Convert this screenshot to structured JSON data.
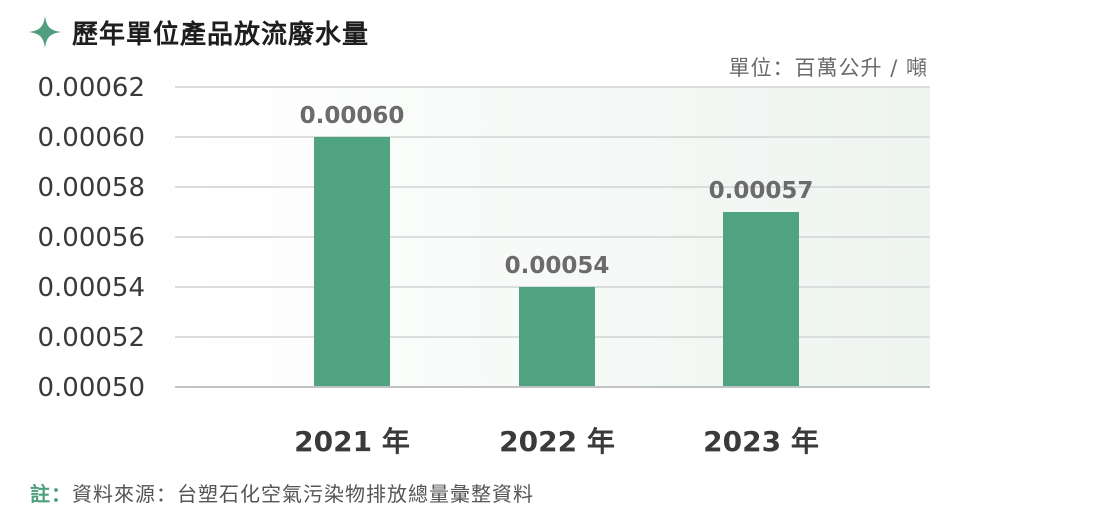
{
  "header": {
    "title": "歷年單位產品放流廢水量",
    "unit": "單位：百萬公升 / 噸"
  },
  "footnote": {
    "label": "註：",
    "text": "資料來源：台塑石化空氣污染物排放總量彙整資料"
  },
  "colors": {
    "bar": "#4fa381",
    "accent": "#4e9f7f",
    "plot_bg_end": "#eef4f0",
    "grid": "#d0d4d2"
  },
  "chart_data": {
    "type": "bar",
    "categories": [
      "2021 年",
      "2022 年",
      "2023 年"
    ],
    "values": [
      0.0006,
      0.00054,
      0.00057
    ],
    "value_labels": [
      "0.00060",
      "0.00054",
      "0.00057"
    ],
    "ylim": [
      0.0005,
      0.00062
    ],
    "yticks": [
      0.0005,
      0.00052,
      0.00054,
      0.00056,
      0.00058,
      0.0006,
      0.00062
    ],
    "ytick_labels": [
      "0.00050",
      "0.00052",
      "0.00054",
      "0.00056",
      "0.00058",
      "0.00060",
      "0.00062"
    ],
    "grid": true,
    "legend": "none"
  }
}
